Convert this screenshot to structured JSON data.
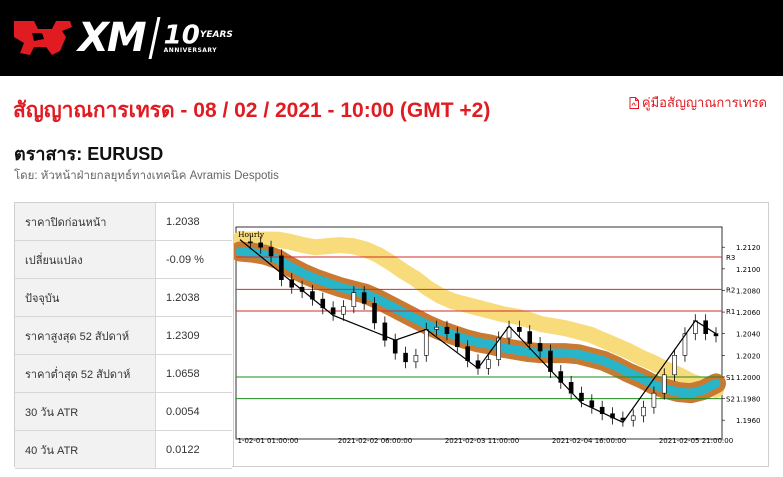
{
  "header": {
    "brand": "XM",
    "anniversary_number": "10",
    "anniversary_years": "YEARS",
    "anniversary_word": "ANNIVERSARY"
  },
  "page": {
    "title": "สัญญาณการเทรด - 08 / 02 / 2021 - 10:00 (GMT +2)",
    "guide_link": "คู่มือสัญญาณการเทรด",
    "instrument": "ตราสาร: EURUSD",
    "author": "โดย: หัวหน้าฝ่ายกลยุทธ์ทางเทคนิค Avramis Despotis"
  },
  "stats": [
    {
      "label": "ราคาปิดก่อนหน้า",
      "value": "1.2038"
    },
    {
      "label": "เปลี่ยนแปลง",
      "value": "-0.09 %"
    },
    {
      "label": "ปัจจุบัน",
      "value": "1.2038"
    },
    {
      "label": "ราคาสูงสุด 52 สัปดาห์",
      "value": "1.2309"
    },
    {
      "label": "ราคาต่ำสุด 52 สัปดาห์",
      "value": "1.0658"
    },
    {
      "label": "30 วัน ATR",
      "value": "0.0054"
    },
    {
      "label": "40 วัน ATR",
      "value": "0.0122"
    }
  ],
  "colors": {
    "accent_red": "#e11b22",
    "resistance": "#d62a2a",
    "support": "#1f8a1f",
    "band_outer": "#c97a32",
    "band_inner": "#29b5c9",
    "band_slow": "#f8dc7c"
  },
  "chart_data": {
    "type": "line",
    "title": "Hourly",
    "ylim": [
      1.195,
      1.2135
    ],
    "y_ticks": [
      "1.2120",
      "1.2100",
      "1.2080",
      "1.2060",
      "1.2040",
      "1.2020",
      "1.2000",
      "1.1980",
      "1.1960"
    ],
    "x_ticks": [
      "1-02-01 01:00:00",
      "2021-02-02 06:00:00",
      "2021-02-03 11:00:00",
      "2021-02-04 16:00:00",
      "2021-02-05 21:00:00"
    ],
    "levels": [
      {
        "name": "R3",
        "value": 1.2111
      },
      {
        "name": "R2",
        "value": 1.2081
      },
      {
        "name": "R1",
        "value": 1.2061
      },
      {
        "name": "S1",
        "value": 1.2
      },
      {
        "name": "S2",
        "value": 1.198
      }
    ],
    "price": [
      1.2125,
      1.2124,
      1.212,
      1.2112,
      1.209,
      1.2083,
      1.2079,
      1.2072,
      1.2064,
      1.2058,
      1.2065,
      1.2078,
      1.2068,
      1.205,
      1.2034,
      1.2022,
      1.2014,
      1.202,
      1.2044,
      1.2046,
      1.204,
      1.2028,
      1.2015,
      1.2008,
      1.2016,
      1.2036,
      1.2046,
      1.2042,
      1.2031,
      1.2024,
      1.2005,
      1.1995,
      1.1985,
      1.1978,
      1.1972,
      1.1966,
      1.1962,
      1.196,
      1.1964,
      1.1972,
      1.1985,
      1.2002,
      1.202,
      1.204,
      1.2052,
      1.204,
      1.2038
    ],
    "trend_line": [
      {
        "i": 0,
        "v": 1.2127
      },
      {
        "i": 9,
        "v": 1.2057
      },
      {
        "i": 15,
        "v": 1.2034
      },
      {
        "i": 18,
        "v": 1.2044
      },
      {
        "i": 23,
        "v": 1.2008
      },
      {
        "i": 26,
        "v": 1.2047
      },
      {
        "i": 33,
        "v": 1.1976
      },
      {
        "i": 37,
        "v": 1.1958
      },
      {
        "i": 44,
        "v": 1.2052
      },
      {
        "i": 46,
        "v": 1.204
      }
    ],
    "band_slow": [
      1.2127,
      1.2127,
      1.2127,
      1.2127,
      1.2125,
      1.2122,
      1.212,
      1.2121,
      1.2122,
      1.2121,
      1.2118,
      1.2113,
      1.2106,
      1.2098,
      1.2091,
      1.2082,
      1.2075,
      1.207,
      1.2067,
      1.2064,
      1.2061,
      1.2058,
      1.2056,
      1.2053,
      1.2049,
      1.2047,
      1.2045,
      1.2042,
      1.2039,
      1.2034,
      1.2029,
      1.2024,
      1.2018,
      1.2013,
      1.2007,
      1.2002,
      1.1996,
      1.1992,
      1.1988
    ],
    "band_fast": [
      1.2116,
      1.2115,
      1.2113,
      1.2109,
      1.2102,
      1.2096,
      1.2091,
      1.2087,
      1.2083,
      1.208,
      1.2077,
      1.2072,
      1.2066,
      1.206,
      1.2054,
      1.2048,
      1.2043,
      1.2039,
      1.2035,
      1.2032,
      1.203,
      1.2027,
      1.2025,
      1.2023,
      1.2022,
      1.2022,
      1.2022,
      1.2021,
      1.2018,
      1.2015,
      1.201,
      1.2004,
      1.1999,
      1.1993,
      1.1989,
      1.1986,
      1.1985,
      1.1988,
      1.1994
    ]
  }
}
